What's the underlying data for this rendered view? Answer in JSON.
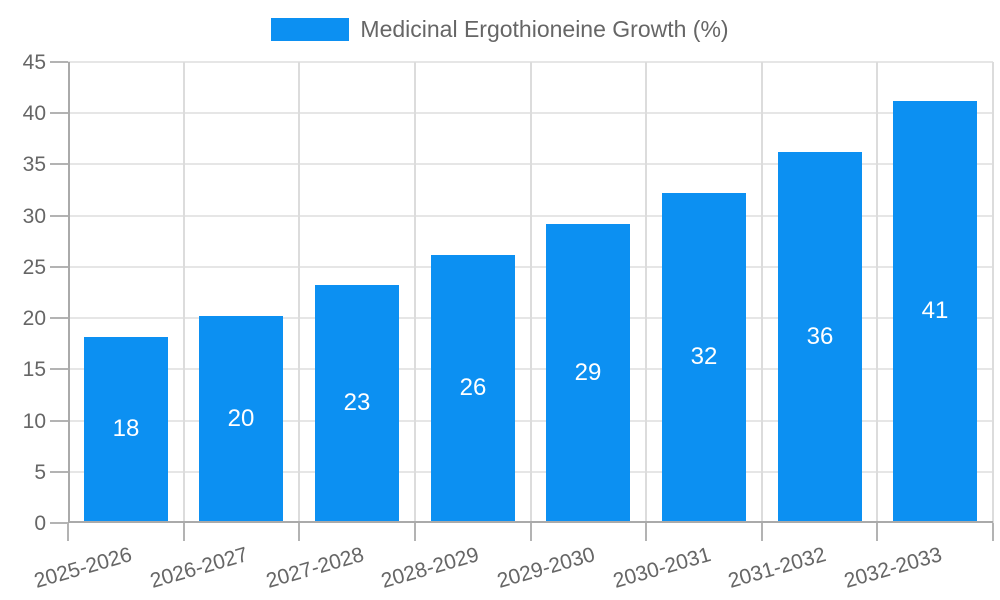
{
  "chart_data": {
    "type": "bar",
    "title": "Medicinal Ergothioneine Growth (%)",
    "legend": {
      "position": "top",
      "label": "Medicinal Ergothioneine Growth (%)"
    },
    "categories": [
      "2025-2026",
      "2026-2027",
      "2027-2028",
      "2028-2029",
      "2029-2030",
      "2030-2031",
      "2031-2032",
      "2032-2033"
    ],
    "values": [
      18,
      20,
      23,
      26,
      29,
      32,
      36,
      41
    ],
    "value_labels_position": "inside-center",
    "xlabel": "",
    "ylabel": "",
    "ylim": [
      0,
      45
    ],
    "yticks": [
      0,
      5,
      10,
      15,
      20,
      25,
      30,
      35,
      40,
      45
    ],
    "x_tick_rotation_deg": -16,
    "grid": true,
    "colors": {
      "bar": "#0c90f2",
      "value_label": "#ffffff",
      "axis_text": "#666666",
      "hgrid": "#e6e6e6",
      "vgrid": "#dcdcdc",
      "axis_line": "#aaaaaa",
      "tick": "#b3b3b3",
      "background": "#ffffff"
    }
  }
}
